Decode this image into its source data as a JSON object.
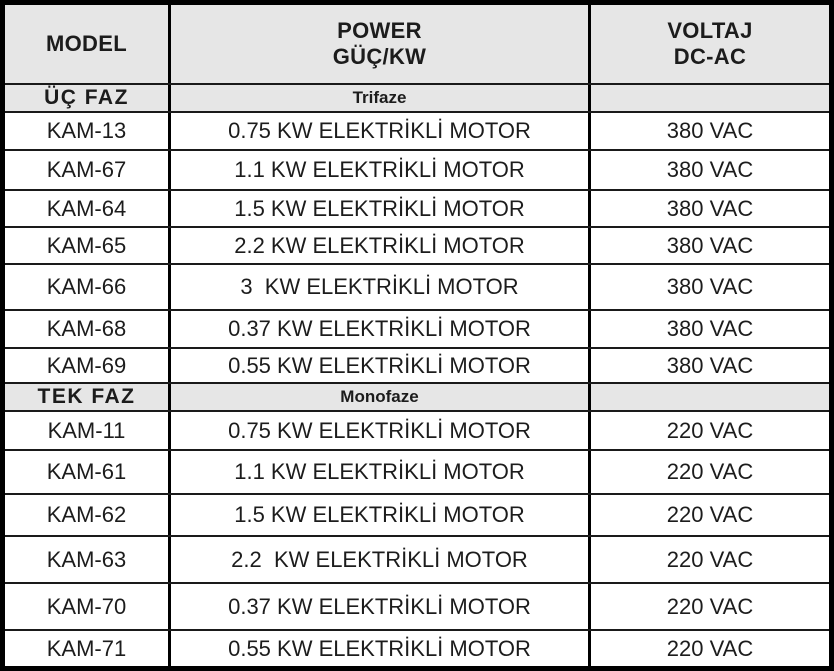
{
  "table": {
    "headers": {
      "model": "MODEL",
      "power": "POWER\nGÜÇ/KW",
      "voltage": "VOLTAJ\nDC-AC"
    },
    "sections": [
      {
        "label": "ÜÇ FAZ",
        "sublabel": "Trifaze",
        "rows": [
          {
            "model": "KAM-13",
            "power": "0.75 KW ELEKTRİKLİ MOTOR",
            "voltage": "380 VAC"
          },
          {
            "model": "KAM-67",
            "power": "1.1 KW ELEKTRİKLİ MOTOR",
            "voltage": "380 VAC"
          },
          {
            "model": "KAM-64",
            "power": "1.5 KW ELEKTRİKLİ MOTOR",
            "voltage": "380 VAC"
          },
          {
            "model": "KAM-65",
            "power": "2.2 KW ELEKTRİKLİ MOTOR",
            "voltage": "380 VAC"
          },
          {
            "model": "KAM-66",
            "power": "3  KW ELEKTRİKLİ MOTOR",
            "voltage": "380 VAC"
          },
          {
            "model": "KAM-68",
            "power": "0.37 KW ELEKTRİKLİ MOTOR",
            "voltage": "380 VAC"
          },
          {
            "model": "KAM-69",
            "power": "0.55 KW ELEKTRİKLİ MOTOR",
            "voltage": "380 VAC"
          }
        ]
      },
      {
        "label": "TEK FAZ",
        "sublabel": "Monofaze",
        "rows": [
          {
            "model": "KAM-11",
            "power": "0.75 KW ELEKTRİKLİ MOTOR",
            "voltage": "220 VAC"
          },
          {
            "model": "KAM-61",
            "power": "1.1 KW ELEKTRİKLİ MOTOR",
            "voltage": "220 VAC"
          },
          {
            "model": "KAM-62",
            "power": "1.5 KW ELEKTRİKLİ MOTOR",
            "voltage": "220 VAC"
          },
          {
            "model": "KAM-63",
            "power": "2.2  KW ELEKTRİKLİ MOTOR",
            "voltage": "220 VAC"
          },
          {
            "model": "KAM-70",
            "power": "0.37 KW ELEKTRİKLİ MOTOR",
            "voltage": "220 VAC"
          },
          {
            "model": "KAM-71",
            "power": "0.55 KW ELEKTRİKLİ MOTOR",
            "voltage": "220 VAC"
          }
        ]
      }
    ]
  }
}
